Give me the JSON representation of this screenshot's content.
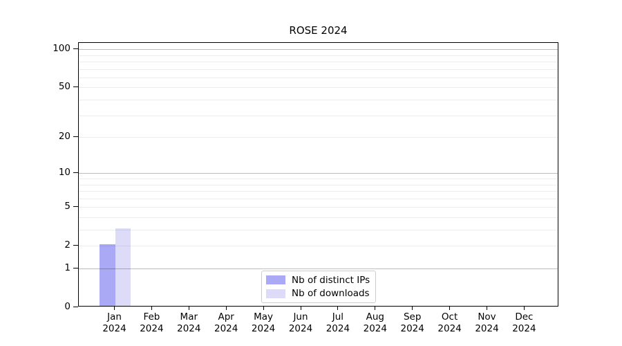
{
  "chart_data": {
    "type": "bar",
    "title": "ROSE 2024",
    "categories": [
      "Jan 2024",
      "Feb 2024",
      "Mar 2024",
      "Apr 2024",
      "May 2024",
      "Jun 2024",
      "Jul 2024",
      "Aug 2024",
      "Sep 2024",
      "Oct 2024",
      "Nov 2024",
      "Dec 2024"
    ],
    "months": [
      "Jan",
      "Feb",
      "Mar",
      "Apr",
      "May",
      "Jun",
      "Jul",
      "Aug",
      "Sep",
      "Oct",
      "Nov",
      "Dec"
    ],
    "year": "2024",
    "series": [
      {
        "name": "Nb of distinct IPs",
        "color": "#a9a9f5",
        "values": [
          2,
          0,
          0,
          0,
          0,
          0,
          0,
          0,
          0,
          0,
          0,
          0
        ]
      },
      {
        "name": "Nb of downloads",
        "color": "#dcdcf9",
        "values": [
          3,
          0,
          0,
          0,
          0,
          0,
          0,
          0,
          0,
          0,
          0,
          0
        ]
      }
    ],
    "xlabel": "",
    "ylabel": "",
    "yscale": "log1p",
    "ylim": [
      0,
      112
    ],
    "ytick_values": [
      100,
      50,
      20,
      10,
      5,
      2,
      1,
      0
    ],
    "grid_major_values": [
      1,
      10,
      100
    ],
    "grid_minor_values": [
      2,
      3,
      4,
      5,
      6,
      7,
      8,
      9,
      20,
      30,
      40,
      50,
      60,
      70,
      80,
      90
    ],
    "grid": "on",
    "legend_position": "inside-bottom-center",
    "legend_entries": [
      "Nb of distinct IPs",
      "Nb of downloads"
    ]
  }
}
